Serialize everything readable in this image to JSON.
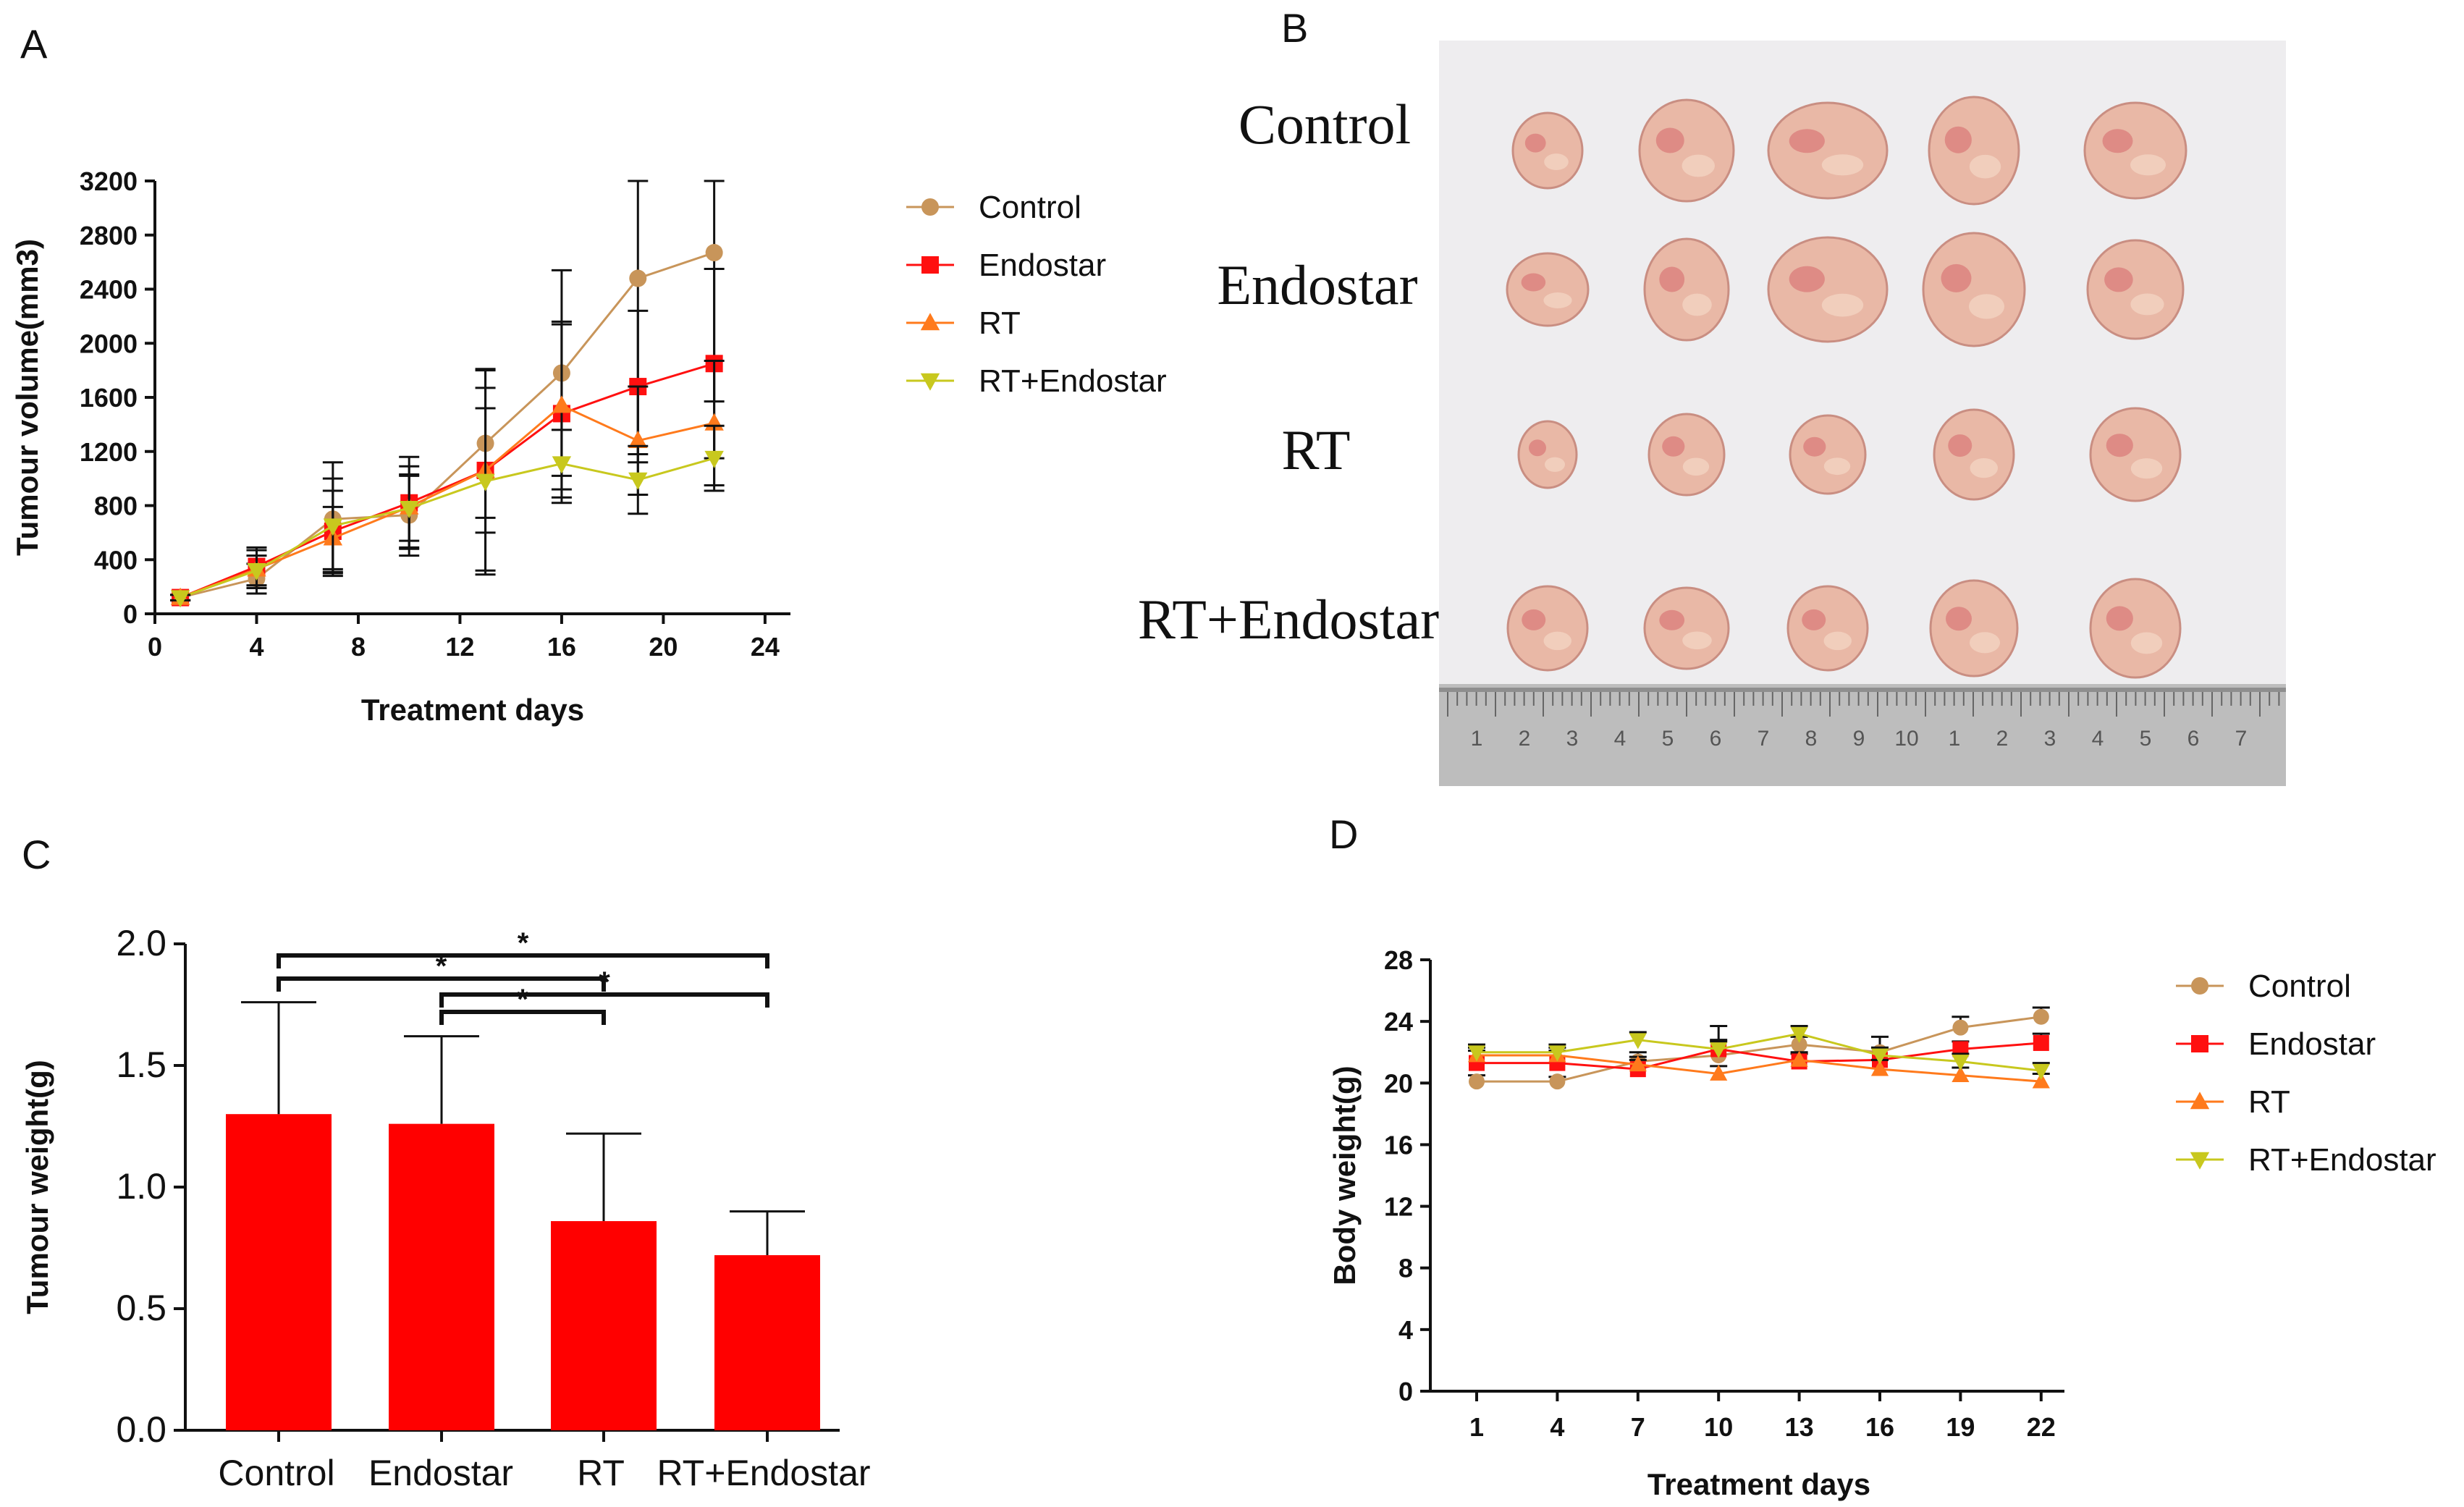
{
  "panel_labels": {
    "a": "A",
    "b": "B",
    "c": "C",
    "d": "D"
  },
  "colors": {
    "control": "#C8955A",
    "endostar": "#FF1010",
    "rt": "#FF7A1C",
    "rt_endostar": "#C8C81E",
    "bar": "#FF0000",
    "photo_background": "#EEEDEF",
    "tumour": "#E9B8A6"
  },
  "chart_data": [
    {
      "panel": "A",
      "type": "line",
      "xlabel": "Treatment days",
      "ylabel": "Tumour volume(mm3)",
      "xlim": [
        0,
        25
      ],
      "ylim": [
        0,
        3200
      ],
      "xticks": [
        0,
        4,
        8,
        12,
        16,
        20,
        24
      ],
      "yticks": [
        0,
        400,
        800,
        1200,
        1600,
        2000,
        2400,
        2800,
        3200
      ],
      "x": [
        1,
        4,
        7,
        10,
        13,
        16,
        19,
        22
      ],
      "legend_position": "right",
      "series": [
        {
          "name": "Control",
          "marker": "circle",
          "color": "#C8955A",
          "values": [
            120,
            260,
            700,
            730,
            1260,
            1780,
            2480,
            2670
          ],
          "errors": [
            20,
            110,
            420,
            300,
            550,
            760,
            1300,
            1100
          ]
        },
        {
          "name": "Endostar",
          "marker": "square",
          "color": "#FF1010",
          "values": [
            120,
            350,
            610,
            820,
            1060,
            1480,
            1680,
            1850
          ],
          "errors": [
            20,
            140,
            300,
            340,
            740,
            660,
            560,
            700
          ]
        },
        {
          "name": "RT",
          "marker": "triangle-up",
          "color": "#FF7A1C",
          "values": [
            120,
            330,
            560,
            790,
            1060,
            1540,
            1280,
            1410
          ],
          "errors": [
            20,
            140,
            230,
            300,
            460,
            620,
            400,
            460
          ]
        },
        {
          "name": "RT+Endostar",
          "marker": "triangle-down",
          "color": "#C8C81E",
          "values": [
            120,
            320,
            650,
            780,
            980,
            1110,
            990,
            1150
          ],
          "errors": [
            20,
            110,
            350,
            240,
            690,
            250,
            250,
            240
          ]
        }
      ]
    },
    {
      "panel": "C",
      "type": "bar",
      "ylabel": "Tumour weight(g)",
      "xlabel": "",
      "categories": [
        "Control",
        "Endostar",
        "RT",
        "RT+Endostar"
      ],
      "values": [
        1.3,
        1.26,
        0.86,
        0.72
      ],
      "errors": [
        0.46,
        0.36,
        0.36,
        0.18
      ],
      "ylim": [
        0,
        2.0
      ],
      "yticks": [
        0.0,
        0.5,
        1.0,
        1.5,
        2.0
      ],
      "significance": [
        {
          "from": 0,
          "to": 3,
          "label": "*"
        },
        {
          "from": 0,
          "to": 2,
          "label": "*"
        },
        {
          "from": 1,
          "to": 3,
          "label": "*"
        },
        {
          "from": 1,
          "to": 2,
          "label": "*"
        }
      ]
    },
    {
      "panel": "D",
      "type": "line",
      "xlabel": "Treatment days",
      "ylabel": "Body weight(g)",
      "ylim": [
        0,
        28
      ],
      "yticks": [
        0,
        4,
        8,
        12,
        16,
        20,
        24,
        28
      ],
      "x": [
        1,
        4,
        7,
        10,
        13,
        16,
        19,
        22
      ],
      "legend_position": "right",
      "series": [
        {
          "name": "Control",
          "marker": "circle",
          "color": "#C8955A",
          "values": [
            20.1,
            20.1,
            21.4,
            21.8,
            22.5,
            22.0,
            23.6,
            24.3
          ],
          "errors": [
            0.4,
            0.3,
            0.6,
            1.0,
            0.5,
            1.0,
            0.7,
            0.6
          ]
        },
        {
          "name": "Endostar",
          "marker": "square",
          "color": "#FF1010",
          "values": [
            21.3,
            21.3,
            20.9,
            22.2,
            21.4,
            21.5,
            22.2,
            22.6
          ],
          "errors": [
            0.8,
            0.8,
            0.6,
            1.5,
            0.5,
            0.8,
            0.5,
            0.6
          ]
        },
        {
          "name": "RT",
          "marker": "triangle-up",
          "color": "#FF7A1C",
          "values": [
            21.8,
            21.8,
            21.2,
            20.6,
            21.5,
            20.9,
            20.5,
            20.1
          ],
          "errors": [
            0.5,
            0.5,
            0.5,
            0.5,
            0.5,
            0.6,
            0.5,
            0.5
          ]
        },
        {
          "name": "RT+Endostar",
          "marker": "triangle-down",
          "color": "#C8C81E",
          "values": [
            22.0,
            22.0,
            22.8,
            22.2,
            23.2,
            21.8,
            21.4,
            20.8
          ],
          "errors": [
            0.5,
            0.5,
            0.5,
            0.5,
            0.5,
            0.5,
            0.5,
            0.5
          ]
        }
      ]
    }
  ],
  "photo": {
    "row_labels": [
      "Control",
      "Endostar",
      "RT",
      "RT+Endostar"
    ],
    "ruler_numbers": [
      "1",
      "2",
      "3",
      "4",
      "5",
      "6",
      "7",
      "8",
      "9",
      "10",
      "1",
      "2",
      "3",
      "4",
      "5",
      "6",
      "7"
    ]
  }
}
